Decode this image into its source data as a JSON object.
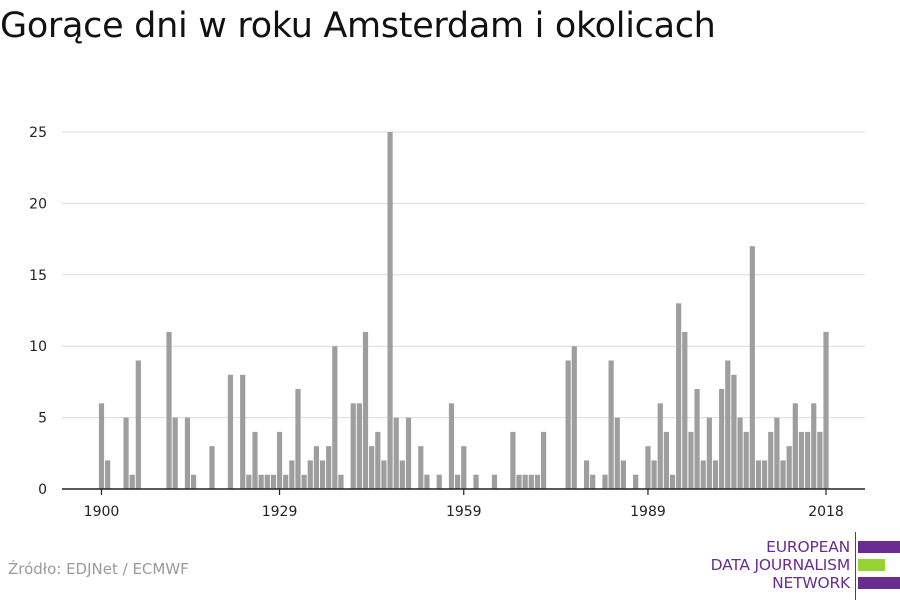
{
  "title": "Gorące dni w roku Amsterdam i okolicach",
  "source": "Źródło: EDJNet / ECMWF",
  "logo": {
    "lines": [
      "EUROPEAN",
      "DATA JOURNALISM",
      "NETWORK"
    ],
    "colors": {
      "primary": "#6a2c91",
      "accent": "#97d234"
    }
  },
  "chart_data": {
    "type": "bar",
    "title": "Gorące dni w roku Amsterdam i okolicach",
    "xlabel": "",
    "ylabel": "",
    "x": [
      1900,
      1901,
      1902,
      1903,
      1904,
      1905,
      1906,
      1907,
      1908,
      1909,
      1910,
      1911,
      1912,
      1913,
      1914,
      1915,
      1916,
      1917,
      1918,
      1919,
      1920,
      1921,
      1922,
      1923,
      1924,
      1925,
      1926,
      1927,
      1928,
      1929,
      1930,
      1931,
      1932,
      1933,
      1934,
      1935,
      1936,
      1937,
      1938,
      1939,
      1940,
      1941,
      1942,
      1943,
      1944,
      1945,
      1946,
      1947,
      1948,
      1949,
      1950,
      1951,
      1952,
      1953,
      1954,
      1955,
      1956,
      1957,
      1958,
      1959,
      1960,
      1961,
      1962,
      1963,
      1964,
      1965,
      1966,
      1967,
      1968,
      1969,
      1970,
      1971,
      1972,
      1973,
      1974,
      1975,
      1976,
      1977,
      1978,
      1979,
      1980,
      1981,
      1982,
      1983,
      1984,
      1985,
      1986,
      1987,
      1988,
      1989,
      1990,
      1991,
      1992,
      1993,
      1994,
      1995,
      1996,
      1997,
      1998,
      1999,
      2000,
      2001,
      2002,
      2003,
      2004,
      2005,
      2006,
      2007,
      2008,
      2009,
      2010,
      2011,
      2012,
      2013,
      2014,
      2015,
      2016,
      2017,
      2018
    ],
    "values": [
      6,
      2,
      0,
      0,
      5,
      1,
      9,
      0,
      0,
      0,
      0,
      11,
      5,
      0,
      5,
      1,
      0,
      0,
      3,
      0,
      0,
      8,
      0,
      8,
      1,
      4,
      1,
      1,
      1,
      4,
      1,
      2,
      7,
      1,
      2,
      3,
      2,
      3,
      10,
      1,
      0,
      6,
      6,
      11,
      3,
      4,
      2,
      25,
      5,
      2,
      5,
      0,
      3,
      1,
      0,
      1,
      0,
      6,
      1,
      3,
      0,
      1,
      0,
      0,
      1,
      0,
      0,
      4,
      1,
      1,
      1,
      1,
      4,
      0,
      0,
      0,
      9,
      10,
      0,
      2,
      1,
      0,
      1,
      9,
      5,
      2,
      0,
      1,
      0,
      3,
      2,
      6,
      4,
      1,
      13,
      11,
      4,
      7,
      2,
      5,
      2,
      7,
      9,
      8,
      5,
      4,
      17,
      2,
      2,
      4,
      5,
      2,
      3,
      6,
      4,
      4,
      6,
      4,
      11
    ],
    "ylim": [
      0,
      25
    ],
    "yticks": [
      "0",
      "5",
      "10",
      "15",
      "20",
      "25"
    ],
    "xticks": [
      "1900",
      "1929",
      "1959",
      "1989",
      "2018"
    ],
    "grid": true,
    "bar_color": "#9e9e9e"
  }
}
